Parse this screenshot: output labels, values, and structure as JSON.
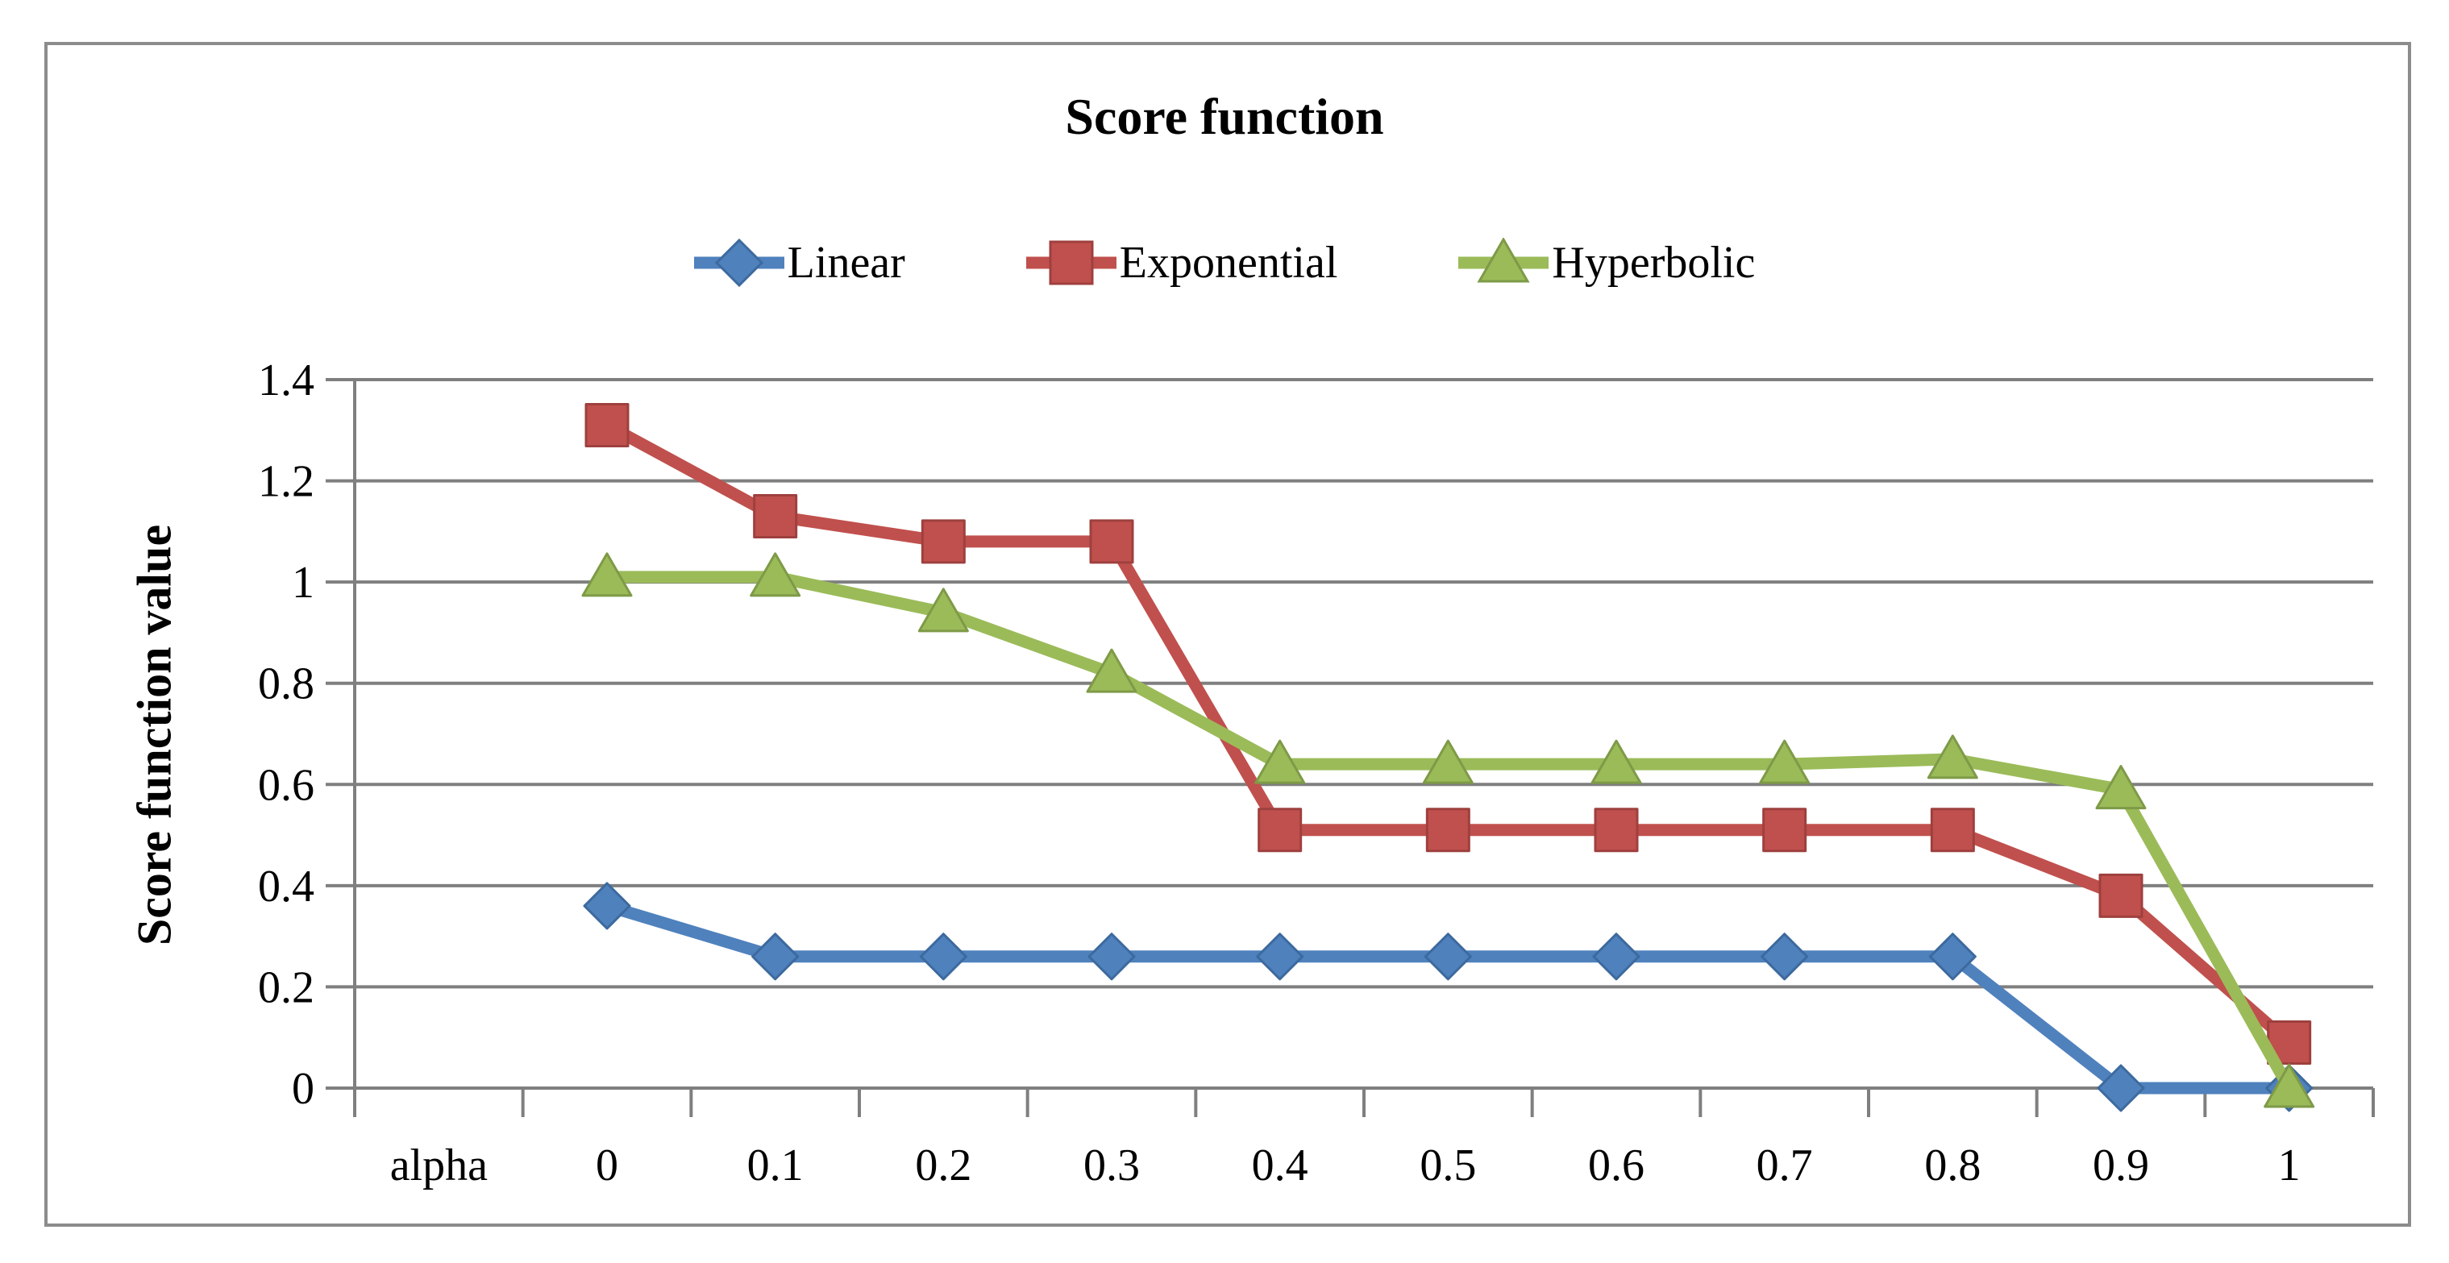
{
  "chart_data": {
    "type": "line",
    "title": "Score function",
    "ylabel": "Score function value",
    "xlabel": "",
    "categories": [
      "alpha",
      "0",
      "0.1",
      "0.2",
      "0.3",
      "0.4",
      "0.5",
      "0.6",
      "0.7",
      "0.8",
      "0.9",
      "1"
    ],
    "y_tick_labels": [
      "0",
      "0.2",
      "0.4",
      "0.6",
      "0.8",
      "1",
      "1.2",
      "1.4"
    ],
    "ylim": [
      0,
      1.4
    ],
    "y_tick_step": 0.2,
    "grid": true,
    "legend_position": "top",
    "series": [
      {
        "name": "Linear",
        "marker": "diamond",
        "color": "#4F81BD",
        "edge_color": "#3D6A9E",
        "values": [
          null,
          0.36,
          0.26,
          0.26,
          0.26,
          0.26,
          0.26,
          0.26,
          0.26,
          0.26,
          0,
          0
        ]
      },
      {
        "name": "Exponential",
        "marker": "square",
        "color": "#C0504D",
        "edge_color": "#9E403E",
        "values": [
          null,
          1.31,
          1.13,
          1.08,
          1.08,
          0.51,
          0.51,
          0.51,
          0.51,
          0.51,
          0.38,
          0.09
        ]
      },
      {
        "name": "Hyperbolic",
        "marker": "triangle",
        "color": "#9BBB59",
        "edge_color": "#7E9A47",
        "values": [
          null,
          1.01,
          1.01,
          0.94,
          0.82,
          0.64,
          0.64,
          0.64,
          0.64,
          0.65,
          0.59,
          0
        ]
      }
    ]
  },
  "colors": {
    "gridline": "#7F7F7F",
    "axis": "#7F7F7F",
    "tick": "#7F7F7F",
    "frame_border": "#8C8C8C",
    "text": "#000000",
    "background": "#FFFFFF"
  }
}
